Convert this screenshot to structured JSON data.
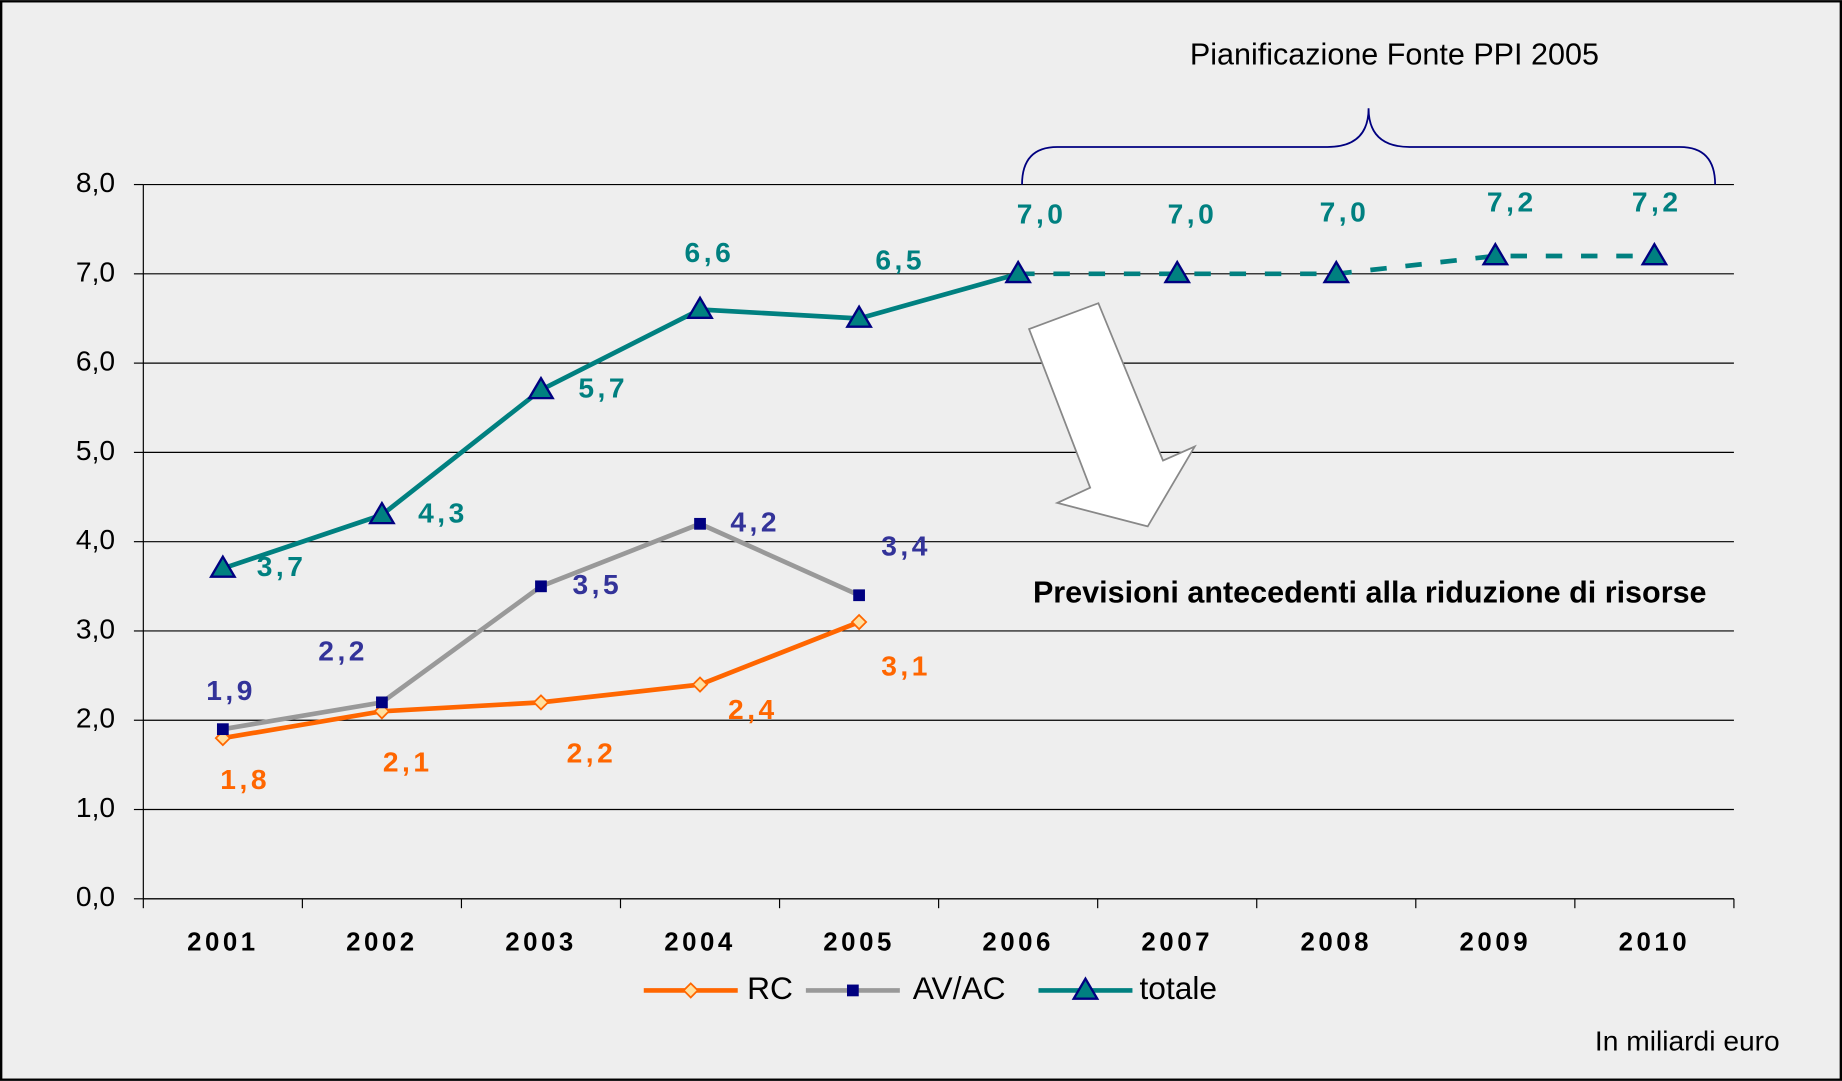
{
  "chart_data": {
    "type": "line",
    "categories": [
      "2001",
      "2002",
      "2003",
      "2004",
      "2005",
      "2006",
      "2007",
      "2008",
      "2009",
      "2010"
    ],
    "series": [
      {
        "name": "RC",
        "color": "#ff6600",
        "marker": "diamond",
        "label_color": "#ff6600",
        "values": [
          1.8,
          2.1,
          2.2,
          2.4,
          3.1,
          null,
          null,
          null,
          null,
          null
        ],
        "value_labels": [
          "1,8",
          "2,1",
          "2,2",
          "2,4",
          "3,1",
          null,
          null,
          null,
          null,
          null
        ]
      },
      {
        "name": "AV/AC",
        "color": "#999999",
        "marker": "square",
        "marker_color": "#000080",
        "label_color": "#333399",
        "values": [
          1.9,
          2.2,
          3.5,
          4.2,
          3.4,
          null,
          null,
          null,
          null,
          null
        ],
        "value_labels": [
          "1,9",
          "2,2",
          "3,5",
          "4,2",
          "3,4",
          null,
          null,
          null,
          null,
          null
        ]
      },
      {
        "name": "totale",
        "color": "#008080",
        "marker": "triangle",
        "marker_color": "#008080",
        "label_color": "#008080",
        "dashed_from": "2006",
        "values": [
          3.7,
          4.3,
          5.7,
          6.6,
          6.5,
          7.0,
          7.0,
          7.0,
          7.2,
          7.2
        ],
        "value_labels": [
          "3,7",
          "4,3",
          "5,7",
          "6,6",
          "6,5",
          "7,0",
          "7,0",
          "7,0",
          "7,2",
          "7,2"
        ]
      }
    ],
    "ylim": [
      0,
      8
    ],
    "yticks": [
      {
        "value": 0,
        "label": "0,0"
      },
      {
        "value": 1,
        "label": "1,0"
      },
      {
        "value": 2,
        "label": "2,0"
      },
      {
        "value": 3,
        "label": "3,0"
      },
      {
        "value": 4,
        "label": "4,0"
      },
      {
        "value": 5,
        "label": "5,0"
      },
      {
        "value": 6,
        "label": "6,0"
      },
      {
        "value": 7,
        "label": "7,0"
      },
      {
        "value": 8,
        "label": "8,0"
      }
    ],
    "grid": true,
    "legend": "bottom",
    "annotations": [
      "Pianificazione Fonte PPI 2005",
      "Previsioni antecedenti alla riduzione di risorse",
      "In miliardi euro"
    ]
  }
}
